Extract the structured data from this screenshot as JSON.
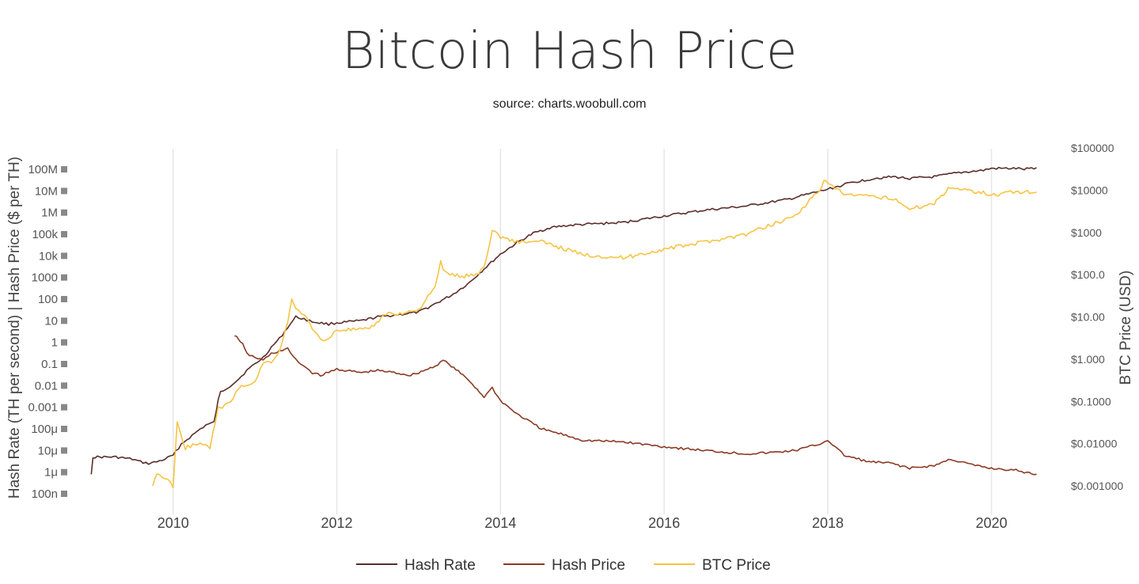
{
  "chart_data": {
    "type": "line",
    "title": "Bitcoin Hash Price",
    "subtitle": "source: charts.woobull.com",
    "xlabel": "",
    "y_left_label": "Hash Rate (TH per second) | Hash Price ($ per TH)",
    "y_right_label": "BTC Price (USD)",
    "x_range": [
      2008.9,
      2020.7
    ],
    "x_ticks": [
      2010,
      2012,
      2014,
      2016,
      2018,
      2020
    ],
    "x_tick_labels": [
      "2010",
      "2012",
      "2014",
      "2016",
      "2018",
      "2020"
    ],
    "y_left_scale": "log",
    "y_left_ticks": [
      "100M",
      "10M",
      "1M",
      "100k",
      "10k",
      "1000",
      "100",
      "10",
      "1",
      "0.1",
      "0.01",
      "0.001",
      "100μ",
      "10μ",
      "1μ",
      "100n"
    ],
    "y_left_tick_values": [
      100000000.0,
      10000000.0,
      1000000.0,
      100000.0,
      10000.0,
      1000,
      100,
      10,
      1,
      0.1,
      0.01,
      0.001,
      0.0001,
      1e-05,
      1e-06,
      1e-07
    ],
    "y_right_scale": "log",
    "y_right_ticks": [
      "$100000",
      "$10000",
      "$1000",
      "$100.0",
      "$10.00",
      "$1.000",
      "$0.1000",
      "$0.01000",
      "$0.001000"
    ],
    "y_right_tick_values": [
      100000,
      10000,
      1000,
      100,
      10,
      1,
      0.1,
      0.01,
      0.001
    ],
    "grid": "vertical",
    "legend_position": "bottom-center",
    "series": [
      {
        "name": "Hash Rate",
        "axis": "left",
        "color": "#5a2d2a",
        "x": [
          2009.0,
          2009.02,
          2009.1,
          2009.3,
          2009.5,
          2009.6,
          2009.7,
          2009.8,
          2009.9,
          2010.0,
          2010.1,
          2010.2,
          2010.3,
          2010.4,
          2010.5,
          2010.55,
          2010.58,
          2010.7,
          2010.8,
          2010.9,
          2011.0,
          2011.1,
          2011.2,
          2011.3,
          2011.4,
          2011.5,
          2011.6,
          2011.7,
          2011.9,
          2012.0,
          2012.3,
          2012.5,
          2012.8,
          2013.0,
          2013.2,
          2013.4,
          2013.6,
          2013.8,
          2014.0,
          2014.2,
          2014.4,
          2014.6,
          2014.8,
          2015.0,
          2015.5,
          2016.0,
          2016.5,
          2017.0,
          2017.5,
          2018.0,
          2018.3,
          2018.6,
          2018.8,
          2019.0,
          2019.3,
          2019.6,
          2019.9,
          2020.0,
          2020.3,
          2020.4,
          2020.55
        ],
        "y": [
          8e-07,
          5e-06,
          5e-06,
          5e-06,
          4e-06,
          3e-06,
          2.5e-06,
          3e-06,
          4e-06,
          6e-06,
          2e-05,
          4e-05,
          8e-05,
          0.00015,
          0.0002,
          0.002,
          0.005,
          0.01,
          0.02,
          0.05,
          0.1,
          0.2,
          0.6,
          1.5,
          5,
          15,
          12,
          9,
          7,
          8,
          10,
          15,
          20,
          25,
          60,
          150,
          500,
          2500,
          12000,
          40000,
          110000,
          200000,
          250000,
          280000,
          350000,
          700000,
          1300000,
          2000000,
          4000000,
          12000000,
          25000000,
          40000000,
          45000000,
          38000000,
          45000000,
          70000000,
          90000000,
          110000000,
          110000000,
          100000000,
          120000000
        ]
      },
      {
        "name": "Hash Price",
        "axis": "left",
        "color": "#8b3a24",
        "x": [
          2010.75,
          2010.8,
          2010.85,
          2010.9,
          2011.0,
          2011.1,
          2011.2,
          2011.3,
          2011.4,
          2011.5,
          2011.6,
          2011.7,
          2011.8,
          2011.9,
          2012.0,
          2012.1,
          2012.3,
          2012.5,
          2012.7,
          2012.9,
          2013.0,
          2013.2,
          2013.3,
          2013.4,
          2013.6,
          2013.8,
          2013.9,
          2014.0,
          2014.2,
          2014.5,
          2014.8,
          2015.0,
          2015.5,
          2016.0,
          2016.5,
          2017.0,
          2017.3,
          2017.6,
          2017.9,
          2018.0,
          2018.2,
          2018.5,
          2018.8,
          2019.0,
          2019.3,
          2019.5,
          2019.8,
          2020.0,
          2020.3,
          2020.4,
          2020.55
        ],
        "y": [
          2,
          1.5,
          0.8,
          0.3,
          0.2,
          0.15,
          0.3,
          0.4,
          0.5,
          0.15,
          0.08,
          0.04,
          0.03,
          0.04,
          0.06,
          0.05,
          0.04,
          0.05,
          0.04,
          0.03,
          0.04,
          0.08,
          0.15,
          0.08,
          0.02,
          0.003,
          0.008,
          0.002,
          0.0005,
          0.0001,
          5e-05,
          3e-05,
          2.5e-05,
          1.5e-05,
          1e-05,
          7e-06,
          8e-06,
          1e-05,
          2e-05,
          3e-05,
          6e-06,
          3e-06,
          2.5e-06,
          1.5e-06,
          2e-06,
          4e-06,
          2e-06,
          1.5e-06,
          1.2e-06,
          1e-06,
          8e-07
        ]
      },
      {
        "name": "BTC Price",
        "axis": "right",
        "color": "#f6c444",
        "x": [
          2009.75,
          2009.8,
          2009.9,
          2010.0,
          2010.05,
          2010.15,
          2010.3,
          2010.45,
          2010.55,
          2010.6,
          2010.7,
          2010.8,
          2010.9,
          2011.0,
          2011.1,
          2011.2,
          2011.3,
          2011.4,
          2011.45,
          2011.5,
          2011.6,
          2011.7,
          2011.8,
          2011.9,
          2012.0,
          2012.2,
          2012.4,
          2012.6,
          2012.8,
          2013.0,
          2013.2,
          2013.27,
          2013.3,
          2013.5,
          2013.7,
          2013.8,
          2013.9,
          2014.0,
          2014.2,
          2014.5,
          2014.8,
          2015.0,
          2015.5,
          2016.0,
          2016.5,
          2017.0,
          2017.3,
          2017.6,
          2017.9,
          2017.95,
          2018.0,
          2018.2,
          2018.5,
          2018.8,
          2018.9,
          2019.0,
          2019.3,
          2019.5,
          2019.7,
          2019.9,
          2020.0,
          2020.2,
          2020.3,
          2020.55
        ],
        "y": [
          0.001,
          0.002,
          0.0015,
          0.001,
          0.03,
          0.008,
          0.01,
          0.008,
          0.07,
          0.07,
          0.1,
          0.2,
          0.25,
          0.3,
          0.8,
          0.9,
          1.5,
          8,
          25,
          15,
          12,
          5,
          3,
          3,
          5,
          5,
          5,
          12,
          12,
          15,
          50,
          200,
          120,
          90,
          100,
          150,
          1100,
          800,
          600,
          600,
          400,
          300,
          250,
          400,
          600,
          900,
          1500,
          2500,
          10000,
          17000,
          14000,
          8000,
          7000,
          6500,
          5000,
          3500,
          5000,
          12000,
          10000,
          9000,
          7500,
          9000,
          9000,
          9000
        ]
      }
    ]
  }
}
